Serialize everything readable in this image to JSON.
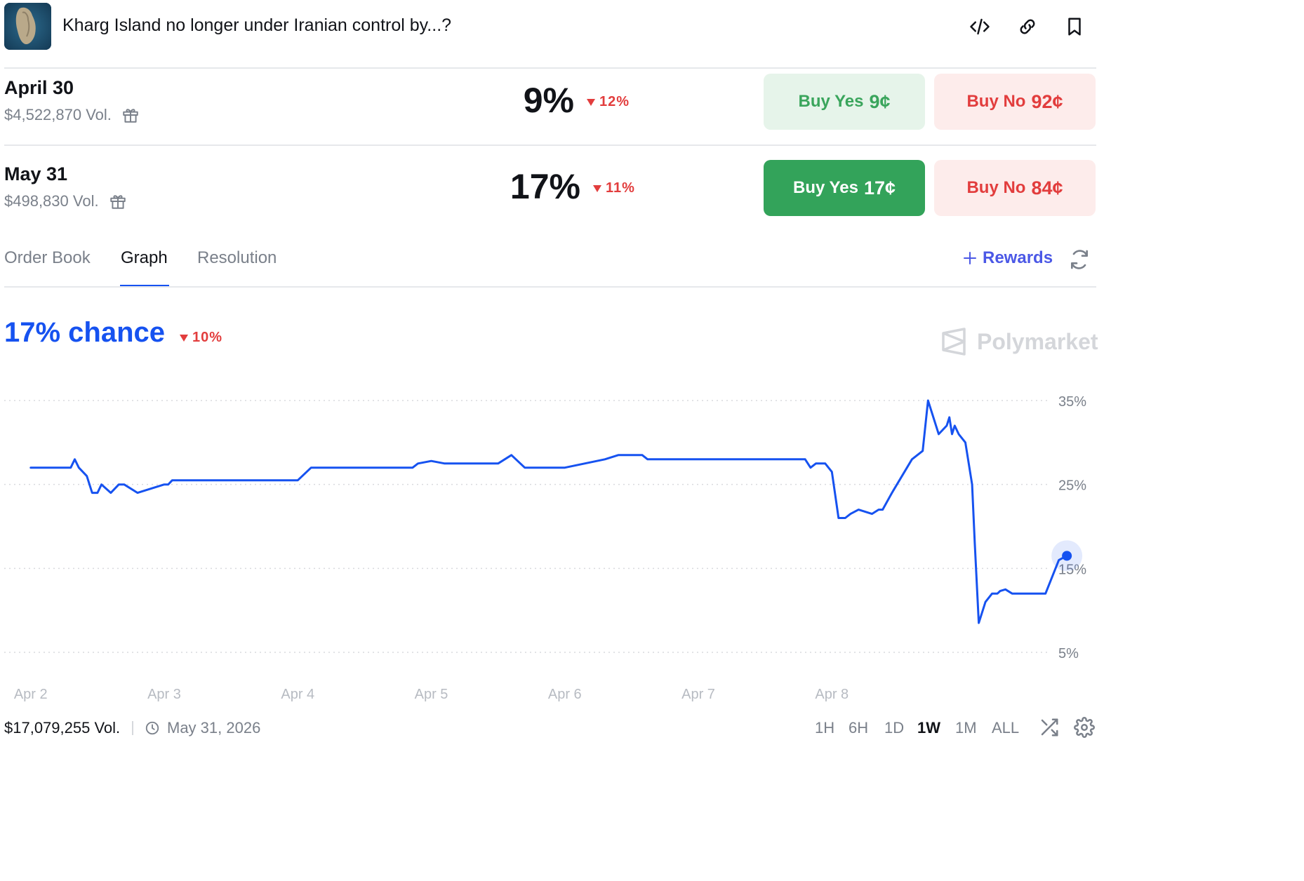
{
  "header": {
    "title": "Kharg Island no longer under Iranian control by...?",
    "icons": [
      "embed-icon",
      "link-icon",
      "bookmark-icon"
    ]
  },
  "outcomes": [
    {
      "name": "April 30",
      "volume": "$4,522,870 Vol.",
      "percent": "9%",
      "change": "12%",
      "buy_yes_label": "Buy Yes",
      "buy_yes_price": "9¢",
      "buy_no_label": "Buy No",
      "buy_no_price": "92¢"
    },
    {
      "name": "May 31",
      "volume": "$498,830 Vol.",
      "percent": "17%",
      "change": "11%",
      "buy_yes_label": "Buy Yes",
      "buy_yes_price": "17¢",
      "buy_no_label": "Buy No",
      "buy_no_price": "84¢"
    }
  ],
  "tabs": [
    {
      "label": "Order Book",
      "active": false
    },
    {
      "label": "Graph",
      "active": true
    },
    {
      "label": "Resolution",
      "active": false
    }
  ],
  "rewards_label": "Rewards",
  "chart_header": {
    "chance": "17% chance",
    "change": "10%",
    "brand": "Polymarket"
  },
  "colors": {
    "accent": "#1652f0",
    "yes": "#33a35a",
    "no": "#e23d3d",
    "rewards": "#4b58e6"
  },
  "chart_data": {
    "type": "line",
    "series": [
      {
        "x": [
          0.0,
          0.3,
          0.33,
          0.36,
          0.42,
          0.46,
          0.5,
          0.53,
          0.6,
          0.66,
          0.7,
          0.8,
          1.0,
          1.03,
          1.06,
          1.2,
          1.4,
          1.6,
          1.7,
          1.75,
          1.8,
          1.9,
          2.0,
          2.1,
          2.5,
          2.86,
          2.9,
          3.0,
          3.1,
          3.5,
          3.6,
          3.7,
          3.75,
          3.8,
          3.88,
          3.9,
          4.0,
          4.3,
          4.4,
          4.5,
          4.58,
          4.62,
          4.7,
          5.0,
          5.5,
          5.8,
          5.84,
          5.88,
          5.95,
          6.0,
          6.05,
          6.1,
          6.14,
          6.2,
          6.3,
          6.35,
          6.38,
          6.45,
          6.6,
          6.68,
          6.72,
          6.8,
          6.86,
          6.88,
          6.9,
          6.92,
          6.95,
          7.0,
          7.05,
          7.07,
          7.1,
          7.15,
          7.2,
          7.24,
          7.26,
          7.3,
          7.35,
          7.5,
          7.6,
          7.65,
          7.7,
          7.76
        ],
        "y": [
          27,
          27,
          28,
          27,
          26,
          24,
          24,
          25,
          24,
          25,
          25,
          24,
          25,
          25,
          25.5,
          25.5,
          25.5,
          25.5,
          25.5,
          25.5,
          25.5,
          25.5,
          25.5,
          27,
          27,
          27,
          27.5,
          27.8,
          27.5,
          27.5,
          28.5,
          27,
          27,
          27,
          27,
          27,
          27,
          28,
          28.5,
          28.5,
          28.5,
          28,
          28,
          28,
          28,
          28,
          27,
          27.5,
          27.5,
          26.5,
          21,
          21,
          21.5,
          22,
          21.5,
          22,
          22,
          24,
          28,
          29,
          35,
          31,
          32,
          33,
          31,
          32,
          31,
          30,
          25,
          18,
          8.5,
          11,
          12,
          12,
          12.3,
          12.5,
          12,
          12,
          12,
          14,
          16,
          16.5
        ],
        "name": ""
      }
    ],
    "x_tick_labels": [
      "Apr 2",
      "Apr 3",
      "Apr 4",
      "Apr 5",
      "Apr 6",
      "Apr 7",
      "Apr 8"
    ],
    "x_tick_positions": [
      0,
      1,
      2,
      3,
      4,
      5,
      6
    ],
    "xlim": [
      -0.23,
      7.98
    ],
    "y_tick_labels": [
      "5%",
      "15%",
      "25%",
      "35%"
    ],
    "y_ticks": [
      5,
      15,
      25,
      35
    ],
    "ylim": [
      3.5,
      36.5
    ],
    "title": "",
    "xlabel": "",
    "ylabel": "",
    "grid": "horizontal dotted",
    "last_point_highlight": true
  },
  "footer": {
    "volume": "$17,079,255 Vol.",
    "end_date": "May 31, 2026",
    "ranges": [
      "1H",
      "6H",
      "1D",
      "1W",
      "1M",
      "ALL"
    ],
    "active_range": "1W"
  }
}
